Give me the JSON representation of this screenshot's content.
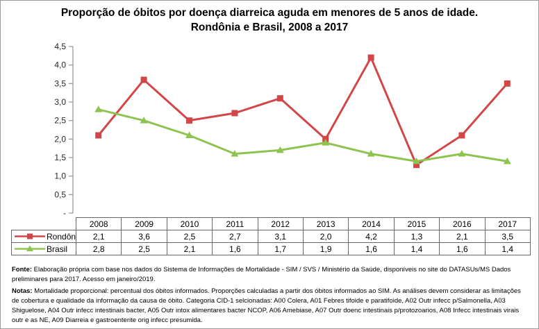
{
  "chart_data": {
    "type": "line",
    "title": "Proporção de óbitos por doença diarreica aguda em menores de 5 anos de idade. Rondônia e Brasil, 2008 a 2017",
    "categories": [
      "2008",
      "2009",
      "2010",
      "2011",
      "2012",
      "2013",
      "2014",
      "2015",
      "2016",
      "2017"
    ],
    "series": [
      {
        "name": "Rondônia",
        "marker": "square",
        "color": "#d24648",
        "values": [
          2.1,
          3.6,
          2.5,
          2.7,
          3.1,
          2.0,
          4.2,
          1.3,
          2.1,
          3.5
        ]
      },
      {
        "name": "Brasil",
        "marker": "triangle",
        "color": "#8dc34f",
        "values": [
          2.8,
          2.5,
          2.1,
          1.6,
          1.7,
          1.9,
          1.6,
          1.4,
          1.6,
          1.4
        ]
      }
    ],
    "xlabel": "",
    "ylabel": "",
    "ylim": [
      0,
      4.5
    ],
    "ytick_step": 0.5,
    "ytick_labels": [
      "-",
      "0,5",
      "1,0",
      "1,5",
      "2,0",
      "2,5",
      "3,0",
      "3,5",
      "4,0",
      "4,5"
    ],
    "decimal_separator": ",",
    "grid": false,
    "legend_position": "table-left",
    "axis_color": "#9a9a9a",
    "tick_label_color": "#262626"
  },
  "footer": {
    "fonte_label": "Fonte:",
    "fonte_text": " Elaboração própria com base nos dados do Sistema de Informações de Mortalidade - SIM / SVS / Ministério da Saúde,  disponíveis no site do DATASUs/MS Dados preliminares para 2017. Acesso em janeiro/2019.",
    "notas_label": "Notas:",
    "notas_text": "  Mortalidade proporcional: percentual dos óbitos informados.  Proporções calculadas a partir dos óbitos informados ao SIM. As análises devem considerar as limitações de cobertura e qualidade da informação da causa de óbito. Categoria CID-1 selcionadas: A00  Colera, A01  Febres tifoide e paratifoide, A02  Outr infecc p/Salmonella, A03  Shiguelose, A04  Outr infecc intestinais bacter,  A05  Outr intox alimentares bacter NCOP, A06  Amebiase, A07  Outr doenc intestinais p/protozoarios, A08   Infecc intestinais virais outr e as NE, A09   Diarreia e gastroenterite orig infecc presumida."
  }
}
